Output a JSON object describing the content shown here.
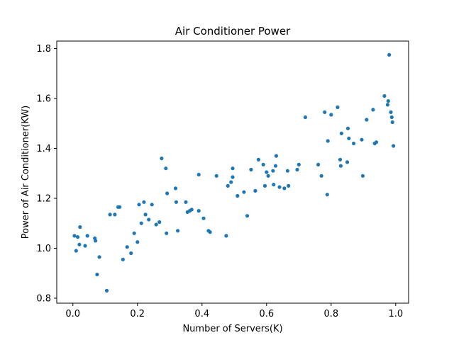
{
  "chart_data": {
    "type": "scatter",
    "title": "Air Conditioner Power",
    "xlabel": "Number of Servers(K)",
    "ylabel": "Power of Air Conditioner(KW)",
    "xlim": [
      -0.05,
      1.04
    ],
    "ylim": [
      0.78,
      1.83
    ],
    "xticks": [
      0.0,
      0.2,
      0.4,
      0.6,
      0.8,
      1.0
    ],
    "yticks": [
      0.8,
      1.0,
      1.2,
      1.4,
      1.6,
      1.8
    ],
    "xtick_labels": [
      "0.0",
      "0.2",
      "0.4",
      "0.6",
      "0.8",
      "1.0"
    ],
    "ytick_labels": [
      "0.8",
      "1.0",
      "1.2",
      "1.4",
      "1.6",
      "1.8"
    ],
    "grid": false,
    "marker_color": "#1f77b4",
    "series": [
      {
        "points": [
          [
            0.005,
            1.05
          ],
          [
            0.01,
            0.99
          ],
          [
            0.015,
            1.045
          ],
          [
            0.02,
            1.015
          ],
          [
            0.022,
            1.085
          ],
          [
            0.038,
            1.01
          ],
          [
            0.045,
            1.05
          ],
          [
            0.068,
            1.04
          ],
          [
            0.07,
            1.03
          ],
          [
            0.075,
            0.895
          ],
          [
            0.082,
            0.965
          ],
          [
            0.105,
            0.83
          ],
          [
            0.115,
            1.135
          ],
          [
            0.13,
            1.135
          ],
          [
            0.14,
            1.165
          ],
          [
            0.145,
            1.165
          ],
          [
            0.155,
            0.955
          ],
          [
            0.168,
            1.005
          ],
          [
            0.18,
            0.98
          ],
          [
            0.19,
            1.06
          ],
          [
            0.2,
            1.025
          ],
          [
            0.205,
            1.175
          ],
          [
            0.212,
            1.1
          ],
          [
            0.22,
            1.185
          ],
          [
            0.225,
            1.135
          ],
          [
            0.235,
            1.115
          ],
          [
            0.245,
            1.175
          ],
          [
            0.258,
            1.095
          ],
          [
            0.268,
            1.105
          ],
          [
            0.275,
            1.36
          ],
          [
            0.288,
            1.32
          ],
          [
            0.29,
            1.06
          ],
          [
            0.292,
            1.22
          ],
          [
            0.318,
            1.24
          ],
          [
            0.32,
            1.185
          ],
          [
            0.325,
            1.07
          ],
          [
            0.35,
            1.185
          ],
          [
            0.355,
            1.145
          ],
          [
            0.362,
            1.15
          ],
          [
            0.368,
            1.155
          ],
          [
            0.39,
            1.295
          ],
          [
            0.39,
            1.15
          ],
          [
            0.405,
            1.12
          ],
          [
            0.42,
            1.07
          ],
          [
            0.425,
            1.065
          ],
          [
            0.445,
            1.29
          ],
          [
            0.475,
            1.05
          ],
          [
            0.48,
            1.25
          ],
          [
            0.49,
            1.265
          ],
          [
            0.495,
            1.32
          ],
          [
            0.495,
            1.285
          ],
          [
            0.51,
            1.21
          ],
          [
            0.53,
            1.225
          ],
          [
            0.54,
            1.13
          ],
          [
            0.552,
            1.315
          ],
          [
            0.565,
            1.23
          ],
          [
            0.575,
            1.355
          ],
          [
            0.59,
            1.335
          ],
          [
            0.595,
            1.25
          ],
          [
            0.6,
            1.305
          ],
          [
            0.605,
            1.29
          ],
          [
            0.62,
            1.31
          ],
          [
            0.622,
            1.255
          ],
          [
            0.628,
            1.33
          ],
          [
            0.63,
            1.37
          ],
          [
            0.64,
            1.245
          ],
          [
            0.655,
            1.24
          ],
          [
            0.665,
            1.31
          ],
          [
            0.668,
            1.25
          ],
          [
            0.695,
            1.315
          ],
          [
            0.7,
            1.335
          ],
          [
            0.72,
            1.525
          ],
          [
            0.76,
            1.335
          ],
          [
            0.77,
            1.29
          ],
          [
            0.78,
            1.545
          ],
          [
            0.788,
            1.215
          ],
          [
            0.79,
            1.43
          ],
          [
            0.8,
            1.535
          ],
          [
            0.82,
            1.565
          ],
          [
            0.828,
            1.355
          ],
          [
            0.83,
            1.33
          ],
          [
            0.832,
            1.46
          ],
          [
            0.85,
            1.345
          ],
          [
            0.852,
            1.48
          ],
          [
            0.855,
            1.44
          ],
          [
            0.87,
            1.42
          ],
          [
            0.895,
            1.435
          ],
          [
            0.898,
            1.29
          ],
          [
            0.91,
            1.515
          ],
          [
            0.93,
            1.555
          ],
          [
            0.935,
            1.42
          ],
          [
            0.94,
            1.425
          ],
          [
            0.965,
            1.61
          ],
          [
            0.975,
            1.575
          ],
          [
            0.977,
            1.59
          ],
          [
            0.98,
            1.775
          ],
          [
            0.985,
            1.545
          ],
          [
            0.988,
            1.525
          ],
          [
            0.99,
            1.505
          ],
          [
            0.993,
            1.41
          ]
        ]
      }
    ]
  }
}
